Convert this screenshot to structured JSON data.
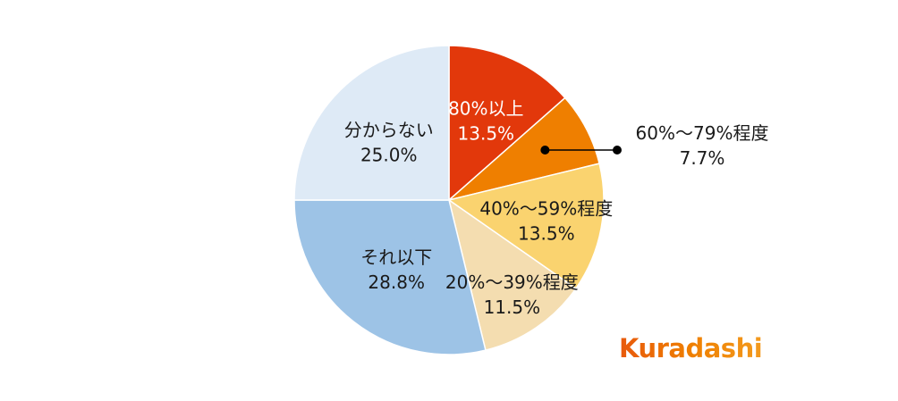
{
  "chart_data": {
    "type": "pie",
    "slices": [
      {
        "label": "80%以上",
        "value": 13.5,
        "value_label": "13.5%",
        "color": "#E2380B",
        "text_color": "#FFFFFF"
      },
      {
        "label": "60%～79%程度",
        "value": 7.7,
        "value_label": "7.7%",
        "color": "#EF7F00",
        "text_color": "#1A1A1A"
      },
      {
        "label": "40%～59%程度",
        "value": 13.5,
        "value_label": "13.5%",
        "color": "#FAD36F",
        "text_color": "#1A1A1A"
      },
      {
        "label": "20%～39%程度",
        "value": 11.5,
        "value_label": "11.5%",
        "color": "#F4DDB0",
        "text_color": "#1A1A1A"
      },
      {
        "label": "それ以下",
        "value": 28.8,
        "value_label": "28.8%",
        "color": "#9DC3E6",
        "text_color": "#1A1A1A"
      },
      {
        "label": "分からない",
        "value": 25.0,
        "value_label": "25.0%",
        "color": "#DEEAF6",
        "text_color": "#1A1A1A"
      }
    ],
    "start": "12 o'clock",
    "direction": "clockwise",
    "callout_slice": "60%～79%程度"
  },
  "logo": {
    "text": "Kuradashi",
    "colors": [
      "#E8590C",
      "#EF7F00",
      "#F39A1E"
    ]
  }
}
